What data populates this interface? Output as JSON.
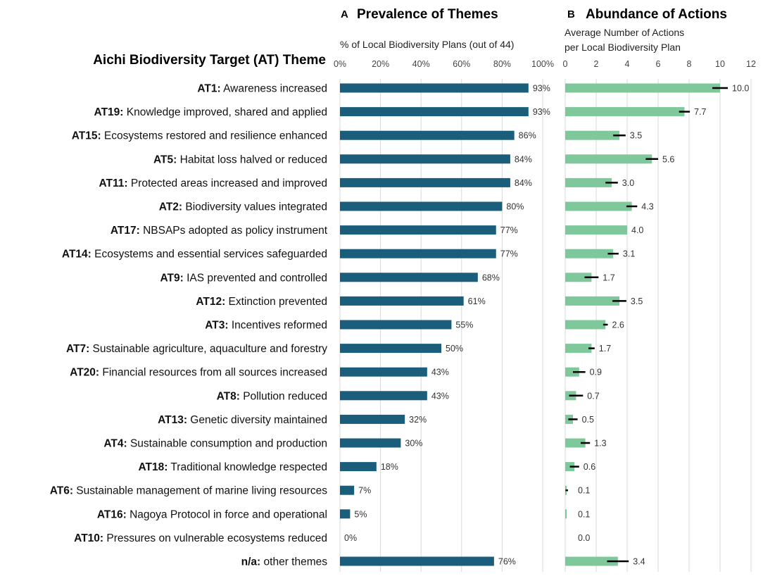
{
  "axis_title": "Aichi Biodiversity Target (AT) Theme",
  "chart_data": [
    {
      "type": "bar",
      "orientation": "horizontal",
      "panel_letter": "A",
      "title": "Prevalence of Themes",
      "xlabel": "% of Local Biodiversity Plans (out of 44)",
      "xlim": [
        0,
        100
      ],
      "ticks": [
        "0%",
        "20%",
        "40%",
        "60%",
        "80%",
        "100%"
      ],
      "tick_values": [
        0,
        20,
        40,
        60,
        80,
        100
      ],
      "color": "#1b5e7b",
      "values": [
        93,
        93,
        86,
        84,
        84,
        80,
        77,
        77,
        68,
        61,
        55,
        50,
        43,
        43,
        32,
        30,
        18,
        7,
        5,
        0,
        76
      ],
      "labels": [
        "93%",
        "93%",
        "86%",
        "84%",
        "84%",
        "80%",
        "77%",
        "77%",
        "68%",
        "61%",
        "55%",
        "50%",
        "43%",
        "43%",
        "32%",
        "30%",
        "18%",
        "7%",
        "5%",
        "0%",
        "76%"
      ]
    },
    {
      "type": "bar",
      "orientation": "horizontal",
      "panel_letter": "B",
      "title": "Abundance of Actions",
      "xlabel_lines": [
        "Average Number of Actions",
        "per Local Biodiversity Plan"
      ],
      "xlim": [
        0,
        12
      ],
      "ticks": [
        "0",
        "2",
        "4",
        "6",
        "8",
        "10",
        "12"
      ],
      "tick_values": [
        0,
        2,
        4,
        6,
        8,
        10,
        12
      ],
      "color": "#7ec89b",
      "error_color": "#000000",
      "values": [
        10.0,
        7.7,
        3.5,
        5.6,
        3.0,
        4.3,
        4.0,
        3.1,
        1.7,
        3.5,
        2.6,
        1.7,
        0.9,
        0.7,
        0.5,
        1.3,
        0.6,
        0.1,
        0.1,
        0.0,
        3.4
      ],
      "errors": [
        0.5,
        0.35,
        0.4,
        0.4,
        0.4,
        0.35,
        0.0,
        0.35,
        0.45,
        0.45,
        0.15,
        0.2,
        0.4,
        0.45,
        0.3,
        0.3,
        0.3,
        0.08,
        0.0,
        0.0,
        0.7
      ],
      "labels": [
        "10.0",
        "7.7",
        "3.5",
        "5.6",
        "3.0",
        "4.3",
        "4.0",
        "3.1",
        "1.7",
        "3.5",
        "2.6",
        "1.7",
        "0.9",
        "0.7",
        "0.5",
        "1.3",
        "0.6",
        "0.1",
        "0.1",
        "0.0",
        "3.4"
      ]
    }
  ],
  "categories": [
    {
      "code": "AT1:",
      "text": "Awareness increased"
    },
    {
      "code": "AT19:",
      "text": "Knowledge improved, shared and applied"
    },
    {
      "code": "AT15:",
      "text": "Ecosystems restored and resilience enhanced"
    },
    {
      "code": "AT5:",
      "text": "Habitat loss halved or reduced"
    },
    {
      "code": "AT11:",
      "text": "Protected areas increased and improved"
    },
    {
      "code": "AT2:",
      "text": "Biodiversity values integrated"
    },
    {
      "code": "AT17:",
      "text": "NBSAPs adopted as policy instrument"
    },
    {
      "code": "AT14:",
      "text": "Ecosystems and essential services safeguarded"
    },
    {
      "code": "AT9:",
      "text": "IAS prevented and controlled"
    },
    {
      "code": "AT12:",
      "text": "Extinction prevented"
    },
    {
      "code": "AT3:",
      "text": "Incentives reformed"
    },
    {
      "code": "AT7:",
      "text": "Sustainable agriculture, aquaculture and forestry"
    },
    {
      "code": "AT20:",
      "text": "Financial resources from all sources increased"
    },
    {
      "code": "AT8:",
      "text": "Pollution reduced"
    },
    {
      "code": "AT13:",
      "text": "Genetic diversity maintained"
    },
    {
      "code": "AT4:",
      "text": "Sustainable consumption and production"
    },
    {
      "code": "AT18:",
      "text": "Traditional knowledge respected"
    },
    {
      "code": "AT6:",
      "text": "Sustainable management of marine living resources"
    },
    {
      "code": "AT16:",
      "text": "Nagoya Protocol in force and operational"
    },
    {
      "code": "AT10:",
      "text": "Pressures on vulnerable ecosystems reduced"
    },
    {
      "code": "n/a:",
      "text": "other themes"
    }
  ]
}
